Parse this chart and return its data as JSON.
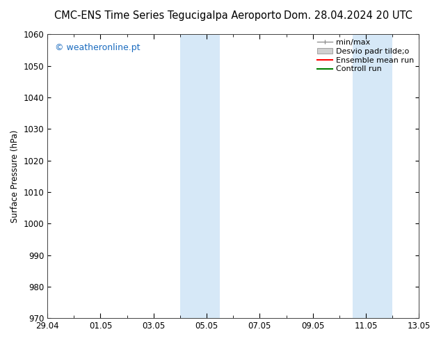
{
  "title_left": "CMC-ENS Time Series Tegucigalpa Aeroporto",
  "title_right": "Dom. 28.04.2024 20 UTC",
  "ylabel": "Surface Pressure (hPa)",
  "ylim": [
    970,
    1060
  ],
  "yticks": [
    970,
    980,
    990,
    1000,
    1010,
    1020,
    1030,
    1040,
    1050,
    1060
  ],
  "xlim": [
    0,
    14
  ],
  "xtick_minor_positions": [
    0,
    1,
    2,
    3,
    4,
    5,
    6,
    7,
    8,
    9,
    10,
    11,
    12,
    13,
    14
  ],
  "xtick_label_positions": [
    0,
    2,
    4,
    6,
    8,
    10,
    12,
    14
  ],
  "xtick_labels": [
    "29.04",
    "01.05",
    "03.05",
    "05.05",
    "07.05",
    "09.05",
    "11.05",
    "13.05"
  ],
  "shade_bands": [
    {
      "xmin": 5.0,
      "xmax": 6.5
    },
    {
      "xmin": 11.5,
      "xmax": 13.0
    }
  ],
  "shade_color": "#d6e8f7",
  "bg_color": "#ffffff",
  "watermark": "© weatheronline.pt",
  "watermark_color": "#1a6bbf",
  "title_fontsize": 10.5,
  "tick_fontsize": 8.5,
  "ylabel_fontsize": 8.5,
  "legend_fontsize": 8,
  "legend_minmax_color": "#909090",
  "legend_desvio_facecolor": "#d0d0d0",
  "legend_desvio_edgecolor": "#a0a0a0",
  "legend_ensemble_color": "#ff0000",
  "legend_control_color": "#008000"
}
